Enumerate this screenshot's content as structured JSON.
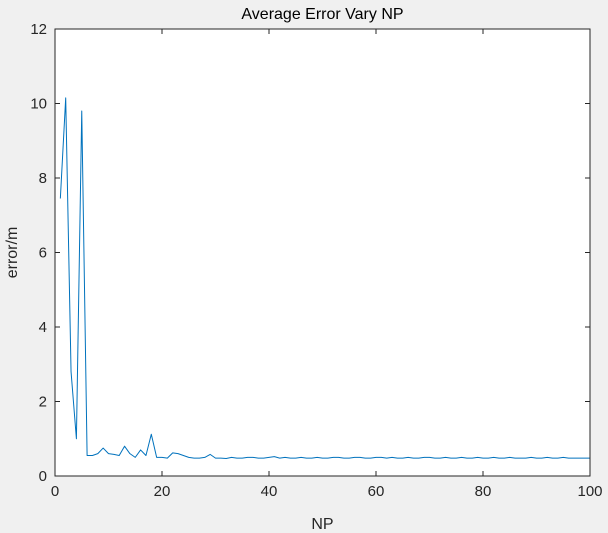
{
  "chart_data": {
    "type": "line",
    "title": "Average Error Vary NP",
    "xlabel": "NP",
    "ylabel": "error/m",
    "xlim": [
      0,
      100
    ],
    "ylim": [
      0,
      12
    ],
    "xticks": [
      0,
      20,
      40,
      60,
      80,
      100
    ],
    "xtick_labels": [
      "0",
      "20",
      "40",
      "60",
      "80",
      "100"
    ],
    "yticks": [
      0,
      2,
      4,
      6,
      8,
      10,
      12
    ],
    "ytick_labels": [
      "0",
      "2",
      "4",
      "6",
      "8",
      "10",
      "12"
    ],
    "grid": false,
    "legend": "none",
    "series": [
      {
        "color": "#0072BD",
        "x": [
          1,
          2,
          3,
          4,
          5,
          6,
          7,
          8,
          9,
          10,
          11,
          12,
          13,
          14,
          15,
          16,
          17,
          18,
          19,
          20,
          21,
          22,
          23,
          24,
          25,
          26,
          27,
          28,
          29,
          30,
          31,
          32,
          33,
          34,
          35,
          36,
          37,
          38,
          39,
          40,
          41,
          42,
          43,
          44,
          45,
          46,
          47,
          48,
          49,
          50,
          51,
          52,
          53,
          54,
          55,
          56,
          57,
          58,
          59,
          60,
          61,
          62,
          63,
          64,
          65,
          66,
          67,
          68,
          69,
          70,
          71,
          72,
          73,
          74,
          75,
          76,
          77,
          78,
          79,
          80,
          81,
          82,
          83,
          84,
          85,
          86,
          87,
          88,
          89,
          90,
          91,
          92,
          93,
          94,
          95,
          96,
          97,
          98,
          99,
          100
        ],
        "y": [
          7.45,
          10.15,
          2.8,
          1.0,
          9.8,
          0.55,
          0.55,
          0.6,
          0.75,
          0.6,
          0.58,
          0.55,
          0.8,
          0.6,
          0.5,
          0.7,
          0.55,
          1.12,
          0.5,
          0.5,
          0.48,
          0.62,
          0.6,
          0.55,
          0.5,
          0.48,
          0.48,
          0.5,
          0.58,
          0.48,
          0.48,
          0.47,
          0.5,
          0.48,
          0.48,
          0.5,
          0.5,
          0.48,
          0.48,
          0.5,
          0.52,
          0.48,
          0.5,
          0.48,
          0.48,
          0.5,
          0.48,
          0.48,
          0.5,
          0.48,
          0.48,
          0.5,
          0.5,
          0.48,
          0.48,
          0.5,
          0.5,
          0.48,
          0.48,
          0.5,
          0.5,
          0.48,
          0.5,
          0.48,
          0.48,
          0.5,
          0.48,
          0.48,
          0.5,
          0.5,
          0.48,
          0.48,
          0.5,
          0.48,
          0.48,
          0.5,
          0.48,
          0.48,
          0.5,
          0.48,
          0.48,
          0.5,
          0.48,
          0.48,
          0.5,
          0.48,
          0.48,
          0.48,
          0.5,
          0.48,
          0.48,
          0.5,
          0.48,
          0.48,
          0.5,
          0.48,
          0.48,
          0.48,
          0.48,
          0.48
        ]
      }
    ]
  }
}
